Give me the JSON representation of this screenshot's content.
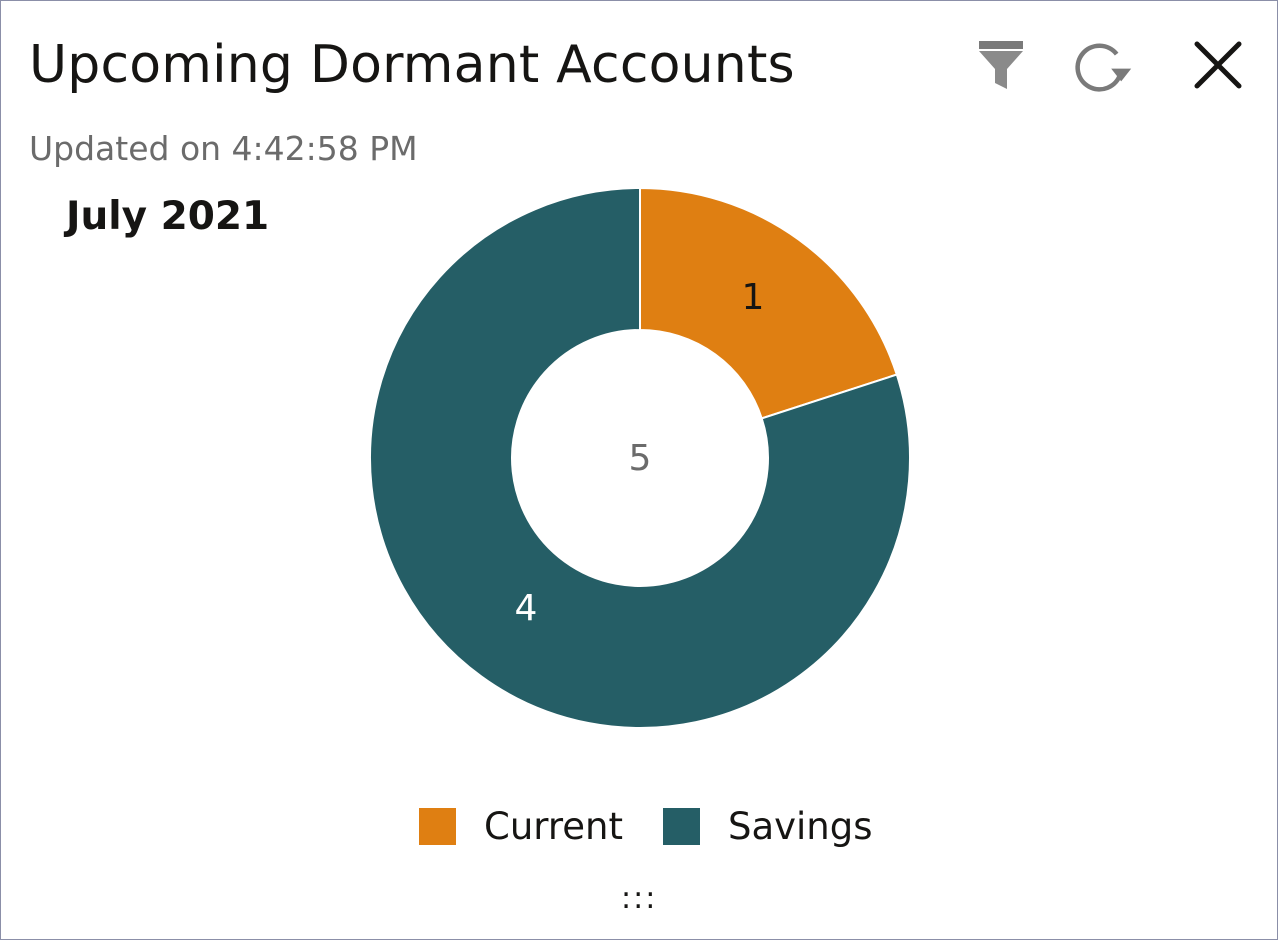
{
  "widget": {
    "title": "Upcoming Dormant Accounts",
    "updated": "Updated on 4:42:58 PM",
    "period": "July 2021"
  },
  "toolbar": {
    "filter_icon": "filter-icon",
    "refresh_icon": "refresh-icon",
    "close_icon": "close-icon"
  },
  "colors": {
    "current": "#df7f12",
    "savings": "#255e66",
    "center_text": "#6b6b6b"
  },
  "chart_data": {
    "type": "pie",
    "donut": true,
    "categories": [
      "Current",
      "Savings"
    ],
    "values": [
      1,
      4
    ],
    "center_total": "5",
    "data_labels": [
      "1",
      "4"
    ],
    "legend": [
      "Current",
      "Savings"
    ],
    "legend_position": "bottom"
  },
  "resize_grip": ":::"
}
